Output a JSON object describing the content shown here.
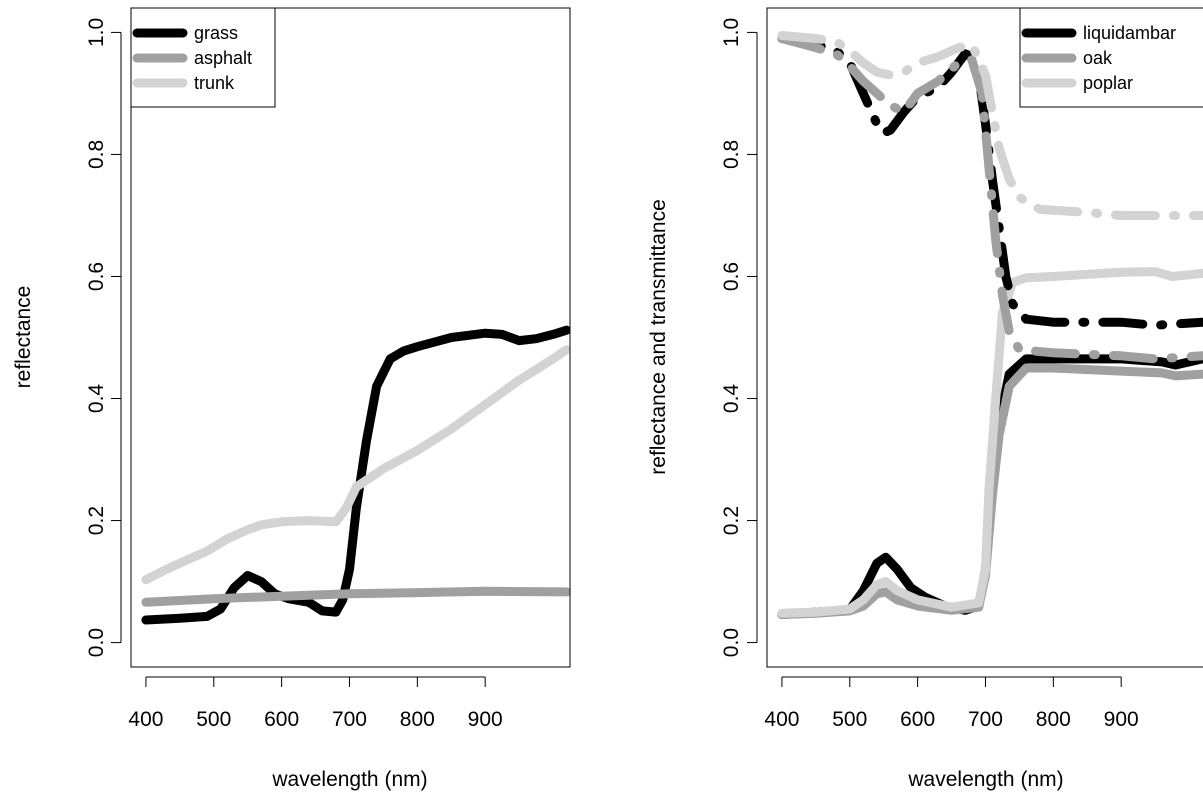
{
  "chart_data": [
    {
      "type": "line",
      "xlabel": "wavelength (nm)",
      "ylabel": "reflectance",
      "xlim": [
        378,
        1025
      ],
      "ylim": [
        -0.04,
        1.04
      ],
      "xticks": [
        400,
        500,
        600,
        700,
        800,
        900
      ],
      "yticks": [
        0.0,
        0.2,
        0.4,
        0.6,
        0.8,
        1.0
      ],
      "ytick_labels": [
        "0.0",
        "0.2",
        "0.4",
        "0.6",
        "0.8",
        "1.0"
      ],
      "legend_position": "top-left",
      "series": [
        {
          "name": "grass",
          "color": "#000000",
          "style": "solid",
          "points": [
            [
              400,
              0.037
            ],
            [
              450,
              0.04
            ],
            [
              490,
              0.043
            ],
            [
              510,
              0.055
            ],
            [
              530,
              0.09
            ],
            [
              550,
              0.11
            ],
            [
              570,
              0.1
            ],
            [
              590,
              0.08
            ],
            [
              610,
              0.072
            ],
            [
              640,
              0.066
            ],
            [
              660,
              0.052
            ],
            [
              680,
              0.05
            ],
            [
              690,
              0.07
            ],
            [
              700,
              0.12
            ],
            [
              710,
              0.22
            ],
            [
              725,
              0.33
            ],
            [
              740,
              0.42
            ],
            [
              760,
              0.465
            ],
            [
              780,
              0.478
            ],
            [
              800,
              0.485
            ],
            [
              850,
              0.5
            ],
            [
              900,
              0.507
            ],
            [
              925,
              0.505
            ],
            [
              950,
              0.495
            ],
            [
              975,
              0.498
            ],
            [
              1000,
              0.505
            ],
            [
              1020,
              0.512
            ]
          ]
        },
        {
          "name": "asphalt",
          "color": "#a0a0a0",
          "style": "solid",
          "points": [
            [
              400,
              0.066
            ],
            [
              500,
              0.072
            ],
            [
              600,
              0.076
            ],
            [
              700,
              0.08
            ],
            [
              800,
              0.082
            ],
            [
              900,
              0.084
            ],
            [
              1020,
              0.083
            ]
          ]
        },
        {
          "name": "trunk",
          "color": "#d3d3d3",
          "style": "solid",
          "points": [
            [
              400,
              0.103
            ],
            [
              430,
              0.12
            ],
            [
              460,
              0.135
            ],
            [
              490,
              0.15
            ],
            [
              520,
              0.17
            ],
            [
              550,
              0.185
            ],
            [
              570,
              0.193
            ],
            [
              600,
              0.198
            ],
            [
              640,
              0.2
            ],
            [
              680,
              0.198
            ],
            [
              695,
              0.22
            ],
            [
              710,
              0.255
            ],
            [
              750,
              0.285
            ],
            [
              800,
              0.315
            ],
            [
              850,
              0.35
            ],
            [
              900,
              0.39
            ],
            [
              950,
              0.43
            ],
            [
              1000,
              0.465
            ],
            [
              1020,
              0.48
            ]
          ]
        }
      ]
    },
    {
      "type": "line",
      "xlabel": "wavelength (nm)",
      "ylabel": "reflectance and transmittance",
      "xlim": [
        378,
        1025
      ],
      "ylim": [
        -0.04,
        1.04
      ],
      "xticks": [
        400,
        500,
        600,
        700,
        800,
        900
      ],
      "yticks": [
        0.0,
        0.2,
        0.4,
        0.6,
        0.8,
        1.0
      ],
      "ytick_labels": [
        "0.0",
        "0.2",
        "0.4",
        "0.6",
        "0.8",
        "1.0"
      ],
      "legend_position": "top-right",
      "legend": [
        {
          "name": "liquidambar",
          "color": "#000000"
        },
        {
          "name": "oak",
          "color": "#a0a0a0"
        },
        {
          "name": "poplar",
          "color": "#d3d3d3"
        }
      ],
      "series": [
        {
          "name": "liquidambar reflectance",
          "color": "#000000",
          "style": "solid",
          "points": [
            [
              400,
              0.046
            ],
            [
              450,
              0.05
            ],
            [
              500,
              0.054
            ],
            [
              520,
              0.085
            ],
            [
              540,
              0.13
            ],
            [
              553,
              0.14
            ],
            [
              570,
              0.12
            ],
            [
              590,
              0.09
            ],
            [
              610,
              0.075
            ],
            [
              640,
              0.06
            ],
            [
              670,
              0.053
            ],
            [
              690,
              0.06
            ],
            [
              700,
              0.12
            ],
            [
              710,
              0.25
            ],
            [
              720,
              0.36
            ],
            [
              735,
              0.44
            ],
            [
              760,
              0.465
            ],
            [
              800,
              0.465
            ],
            [
              900,
              0.465
            ],
            [
              960,
              0.46
            ],
            [
              980,
              0.455
            ],
            [
              1020,
              0.465
            ]
          ]
        },
        {
          "name": "oak reflectance",
          "color": "#a0a0a0",
          "style": "solid",
          "points": [
            [
              400,
              0.046
            ],
            [
              450,
              0.048
            ],
            [
              500,
              0.052
            ],
            [
              520,
              0.06
            ],
            [
              540,
              0.08
            ],
            [
              553,
              0.083
            ],
            [
              570,
              0.07
            ],
            [
              600,
              0.06
            ],
            [
              650,
              0.053
            ],
            [
              690,
              0.058
            ],
            [
              700,
              0.11
            ],
            [
              710,
              0.24
            ],
            [
              720,
              0.34
            ],
            [
              735,
              0.42
            ],
            [
              760,
              0.45
            ],
            [
              800,
              0.45
            ],
            [
              900,
              0.445
            ],
            [
              960,
              0.442
            ],
            [
              980,
              0.437
            ],
            [
              1020,
              0.44
            ]
          ]
        },
        {
          "name": "poplar reflectance",
          "color": "#d3d3d3",
          "style": "solid",
          "points": [
            [
              400,
              0.048
            ],
            [
              450,
              0.05
            ],
            [
              500,
              0.055
            ],
            [
              520,
              0.07
            ],
            [
              540,
              0.095
            ],
            [
              553,
              0.1
            ],
            [
              570,
              0.085
            ],
            [
              600,
              0.07
            ],
            [
              650,
              0.058
            ],
            [
              690,
              0.065
            ],
            [
              700,
              0.12
            ],
            [
              705,
              0.25
            ],
            [
              715,
              0.4
            ],
            [
              725,
              0.54
            ],
            [
              740,
              0.59
            ],
            [
              760,
              0.598
            ],
            [
              800,
              0.6
            ],
            [
              900,
              0.607
            ],
            [
              950,
              0.608
            ],
            [
              975,
              0.6
            ],
            [
              1020,
              0.605
            ]
          ]
        },
        {
          "name": "liquidambar transmittance",
          "color": "#000000",
          "style": "dashdot",
          "points": [
            [
              400,
              0.99
            ],
            [
              450,
              0.98
            ],
            [
              480,
              0.97
            ],
            [
              500,
              0.95
            ],
            [
              520,
              0.9
            ],
            [
              540,
              0.85
            ],
            [
              550,
              0.835
            ],
            [
              560,
              0.84
            ],
            [
              580,
              0.87
            ],
            [
              600,
              0.895
            ],
            [
              630,
              0.91
            ],
            [
              650,
              0.935
            ],
            [
              670,
              0.965
            ],
            [
              680,
              0.96
            ],
            [
              690,
              0.93
            ],
            [
              700,
              0.85
            ],
            [
              710,
              0.76
            ],
            [
              720,
              0.68
            ],
            [
              730,
              0.6
            ],
            [
              740,
              0.555
            ],
            [
              760,
              0.53
            ],
            [
              800,
              0.525
            ],
            [
              850,
              0.525
            ],
            [
              900,
              0.525
            ],
            [
              950,
              0.52
            ],
            [
              1020,
              0.525
            ]
          ]
        },
        {
          "name": "oak transmittance",
          "color": "#a0a0a0",
          "style": "dashdot",
          "points": [
            [
              400,
              0.99
            ],
            [
              450,
              0.975
            ],
            [
              480,
              0.965
            ],
            [
              500,
              0.945
            ],
            [
              520,
              0.92
            ],
            [
              540,
              0.9
            ],
            [
              560,
              0.88
            ],
            [
              580,
              0.87
            ],
            [
              600,
              0.9
            ],
            [
              630,
              0.92
            ],
            [
              660,
              0.95
            ],
            [
              680,
              0.955
            ],
            [
              695,
              0.9
            ],
            [
              705,
              0.78
            ],
            [
              715,
              0.66
            ],
            [
              725,
              0.57
            ],
            [
              735,
              0.51
            ],
            [
              750,
              0.48
            ],
            [
              800,
              0.475
            ],
            [
              900,
              0.47
            ],
            [
              950,
              0.465
            ],
            [
              1020,
              0.47
            ]
          ]
        },
        {
          "name": "poplar transmittance",
          "color": "#d3d3d3",
          "style": "dashdot",
          "points": [
            [
              400,
              0.995
            ],
            [
              450,
              0.99
            ],
            [
              480,
              0.985
            ],
            [
              500,
              0.97
            ],
            [
              520,
              0.95
            ],
            [
              540,
              0.935
            ],
            [
              560,
              0.93
            ],
            [
              580,
              0.935
            ],
            [
              600,
              0.95
            ],
            [
              630,
              0.96
            ],
            [
              660,
              0.975
            ],
            [
              680,
              0.98
            ],
            [
              700,
              0.93
            ],
            [
              710,
              0.87
            ],
            [
              720,
              0.81
            ],
            [
              735,
              0.76
            ],
            [
              750,
              0.73
            ],
            [
              780,
              0.71
            ],
            [
              850,
              0.705
            ],
            [
              900,
              0.7
            ],
            [
              950,
              0.7
            ],
            [
              1020,
              0.7
            ]
          ]
        }
      ]
    }
  ]
}
